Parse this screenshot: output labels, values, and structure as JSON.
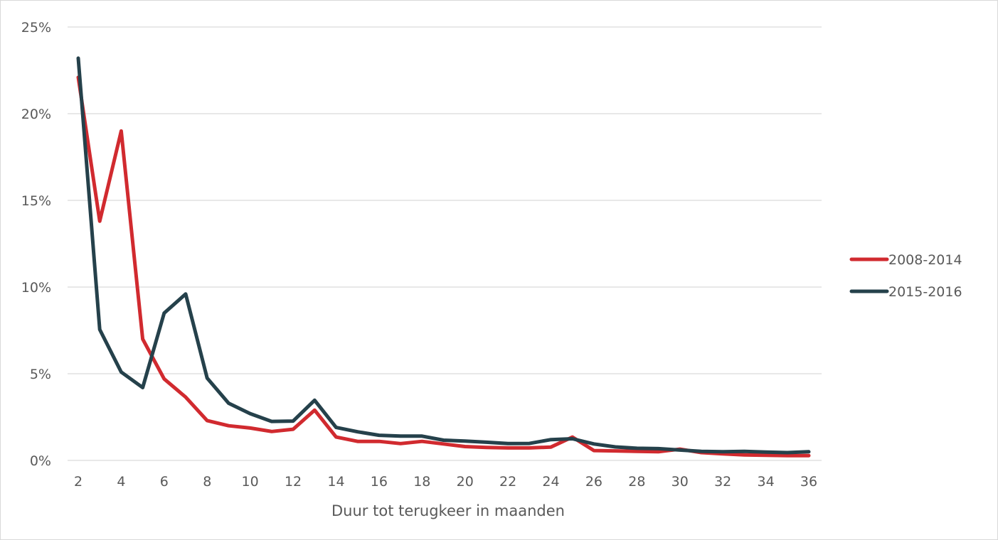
{
  "chart_data": {
    "type": "line",
    "title": "",
    "xlabel": "Duur tot terugkeer in maanden",
    "ylabel": "",
    "xlim": [
      2,
      36
    ],
    "ylim": [
      0,
      25
    ],
    "x_ticks": [
      "2",
      "4",
      "6",
      "8",
      "10",
      "12",
      "14",
      "16",
      "18",
      "20",
      "22",
      "24",
      "26",
      "28",
      "30",
      "32",
      "34",
      "36"
    ],
    "y_ticks": [
      "0%",
      "5%",
      "10%",
      "15%",
      "20%",
      "25%"
    ],
    "grid": "horizontal",
    "legend_position": "right",
    "x": [
      2,
      3,
      4,
      5,
      6,
      7,
      8,
      9,
      10,
      11,
      12,
      13,
      14,
      15,
      16,
      17,
      18,
      19,
      20,
      21,
      22,
      23,
      24,
      25,
      26,
      27,
      28,
      29,
      30,
      31,
      32,
      33,
      34,
      35,
      36
    ],
    "series": [
      {
        "name": "2008-2014",
        "color": "#d12a2f",
        "values": [
          22.1,
          13.8,
          19.0,
          7.0,
          4.7,
          3.65,
          2.3,
          2.0,
          1.87,
          1.67,
          1.8,
          2.9,
          1.35,
          1.1,
          1.1,
          0.97,
          1.1,
          0.95,
          0.8,
          0.75,
          0.72,
          0.72,
          0.77,
          1.35,
          0.57,
          0.55,
          0.52,
          0.5,
          0.65,
          0.45,
          0.38,
          0.32,
          0.3,
          0.28,
          0.28
        ]
      },
      {
        "name": "2015-2016",
        "color": "#25414b",
        "values": [
          23.2,
          7.55,
          5.1,
          4.2,
          8.5,
          9.6,
          4.75,
          3.3,
          2.7,
          2.25,
          2.27,
          3.47,
          1.9,
          1.65,
          1.45,
          1.4,
          1.4,
          1.17,
          1.12,
          1.05,
          0.97,
          0.98,
          1.2,
          1.25,
          0.95,
          0.78,
          0.7,
          0.68,
          0.6,
          0.52,
          0.5,
          0.52,
          0.48,
          0.45,
          0.5
        ]
      }
    ]
  }
}
